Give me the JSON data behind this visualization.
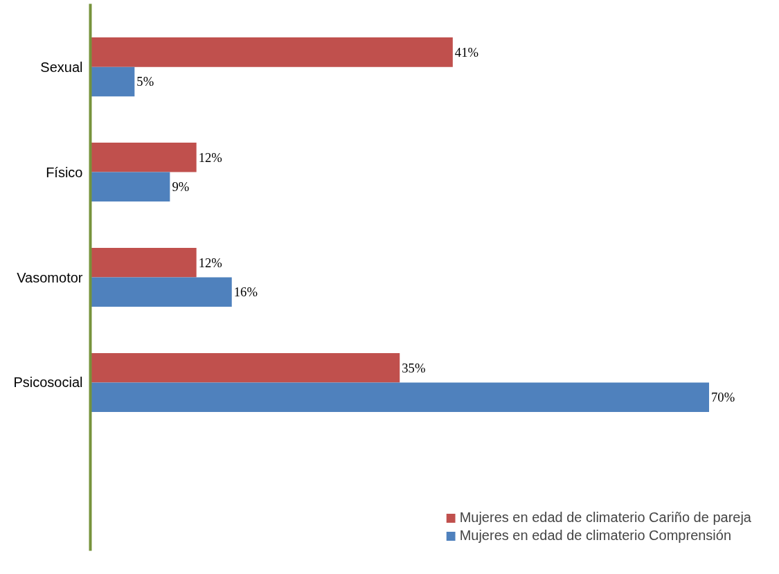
{
  "chart_data": {
    "type": "bar",
    "orientation": "horizontal",
    "categories": [
      "Sexual",
      "Físico",
      "Vasomotor",
      "Psicosocial"
    ],
    "series": [
      {
        "name": "Mujeres en edad de climaterio Cariño de pareja",
        "color": "#c0504d",
        "values": [
          41,
          12,
          12,
          35
        ],
        "value_labels": [
          "41%",
          "12%",
          "12%",
          "35%"
        ]
      },
      {
        "name": "Mujeres en edad de climaterio Comprensión",
        "color": "#4f81bd",
        "values": [
          5,
          9,
          16,
          70
        ],
        "value_labels": [
          "5%",
          "9%",
          "16%",
          "70%"
        ]
      }
    ],
    "legend": "bottom right"
  }
}
